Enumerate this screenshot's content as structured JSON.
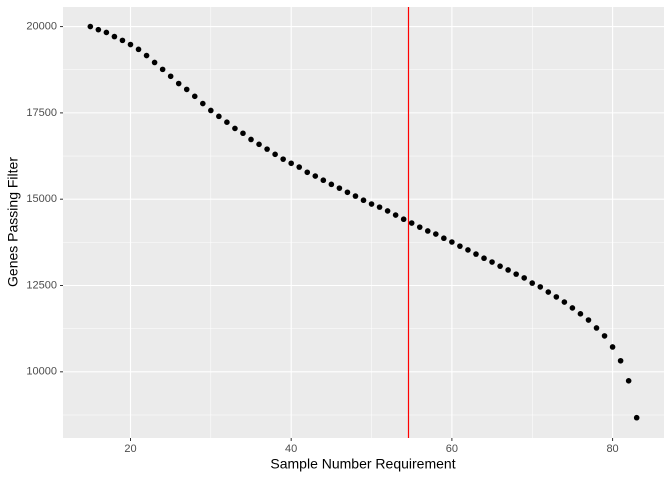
{
  "chart_data": {
    "type": "scatter",
    "x_label": "Sample Number Requirement",
    "y_label": "Genes Passing Filter",
    "x": [
      15,
      16,
      17,
      18,
      19,
      20,
      21,
      22,
      23,
      24,
      25,
      26,
      27,
      28,
      29,
      30,
      31,
      32,
      33,
      34,
      35,
      36,
      37,
      38,
      39,
      40,
      41,
      42,
      43,
      44,
      45,
      46,
      47,
      48,
      49,
      50,
      51,
      52,
      53,
      54,
      55,
      56,
      57,
      58,
      59,
      60,
      61,
      62,
      63,
      64,
      65,
      66,
      67,
      68,
      69,
      70,
      71,
      72,
      73,
      74,
      75,
      76,
      77,
      78,
      79,
      80,
      81,
      82,
      83
    ],
    "values": [
      20000,
      19910,
      19830,
      19710,
      19600,
      19480,
      19340,
      19160,
      18960,
      18760,
      18560,
      18350,
      18180,
      17980,
      17770,
      17570,
      17400,
      17230,
      17050,
      16910,
      16730,
      16590,
      16450,
      16300,
      16160,
      16040,
      15930,
      15780,
      15670,
      15550,
      15430,
      15320,
      15200,
      15090,
      14970,
      14860,
      14770,
      14660,
      14540,
      14420,
      14310,
      14190,
      14080,
      13990,
      13870,
      13760,
      13640,
      13530,
      13410,
      13290,
      13180,
      13060,
      12950,
      12830,
      12720,
      12570,
      12460,
      12310,
      12170,
      12020,
      11850,
      11680,
      11500,
      11270,
      11040,
      10720,
      10320,
      9740,
      8670
    ],
    "color": "#000000",
    "reference_line": {
      "x": 54.6,
      "color": "#ff0000"
    },
    "xlim": [
      11.6,
      86.4
    ],
    "xticks": [
      20,
      40,
      60,
      80
    ],
    "ylim": [
      8083,
      20567
    ],
    "yticks": [
      10000,
      12500,
      15000,
      17500,
      20000
    ],
    "grid": true,
    "background": "#ebebeb"
  }
}
